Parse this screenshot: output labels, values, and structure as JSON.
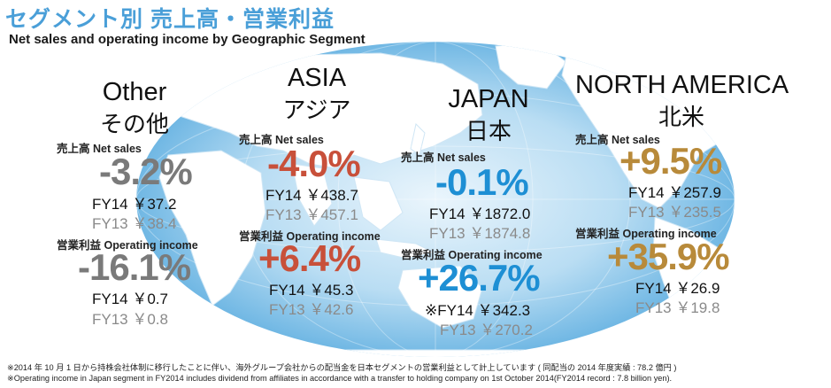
{
  "title": {
    "jp": "セグメント別 売上高・営業利益",
    "en": "Net sales and operating income by Geographic Segment"
  },
  "colors": {
    "title": "#4a9fd8",
    "other": "#7a7a7a",
    "asia": "#c8503a",
    "japan": "#1e8fd4",
    "north_america": "#b88a3a"
  },
  "regions": {
    "other": {
      "name_en": "Other",
      "name_jp": "その他",
      "sales_label": "売上高 Net sales",
      "sales_pct": "-3.2%",
      "sales_fy14": "FY14 ￥37.2",
      "sales_fy13": "FY13 ￥38.4",
      "income_label": "営業利益 Operating income",
      "income_pct": "-16.1%",
      "income_fy14": "FY14 ￥0.7",
      "income_fy13": "FY13 ￥0.8"
    },
    "asia": {
      "name_en": "ASIA",
      "name_jp": "アジア",
      "sales_label": "売上高 Net sales",
      "sales_pct": "-4.0%",
      "sales_fy14": "FY14 ￥438.7",
      "sales_fy13": "FY13 ￥457.1",
      "income_label": "営業利益 Operating income",
      "income_pct": "+6.4%",
      "income_fy14": "FY14 ￥45.3",
      "income_fy13": "FY13 ￥42.6"
    },
    "japan": {
      "name_en": "JAPAN",
      "name_jp": "日本",
      "sales_label": "売上高 Net sales",
      "sales_pct": "-0.1%",
      "sales_fy14": "FY14 ￥1872.0",
      "sales_fy13": "FY13 ￥1874.8",
      "income_label": "営業利益 Operating income",
      "income_pct": "+26.7%",
      "income_fy14": "※FY14 ￥342.3",
      "income_fy13": "FY13 ￥270.2"
    },
    "north_america": {
      "name_en": "NORTH AMERICA",
      "name_jp": "北米",
      "sales_label": "売上高 Net sales",
      "sales_pct": "+9.5%",
      "sales_fy14": "FY14 ￥257.9",
      "sales_fy13": "FY13 ￥235.5",
      "income_label": "営業利益 Operating income",
      "income_pct": "+35.9%",
      "income_fy14": "FY14 ￥26.9",
      "income_fy13": "FY13 ￥19.8"
    }
  },
  "notes": {
    "jp": "※2014 年 10 月 1 日から持株会社体制に移行したことに伴い、海外グループ会社からの配当金を日本セグメントの営業利益として計上しています ( 同配当の 2014 年度実績 : 78.2 億円 )",
    "en": "※Operating income in Japan segment in FY2014 includes dividend from affiliates in accordance with a transfer to holding company on 1st October 2014(FY2014 record : 7.8 billion yen)."
  }
}
